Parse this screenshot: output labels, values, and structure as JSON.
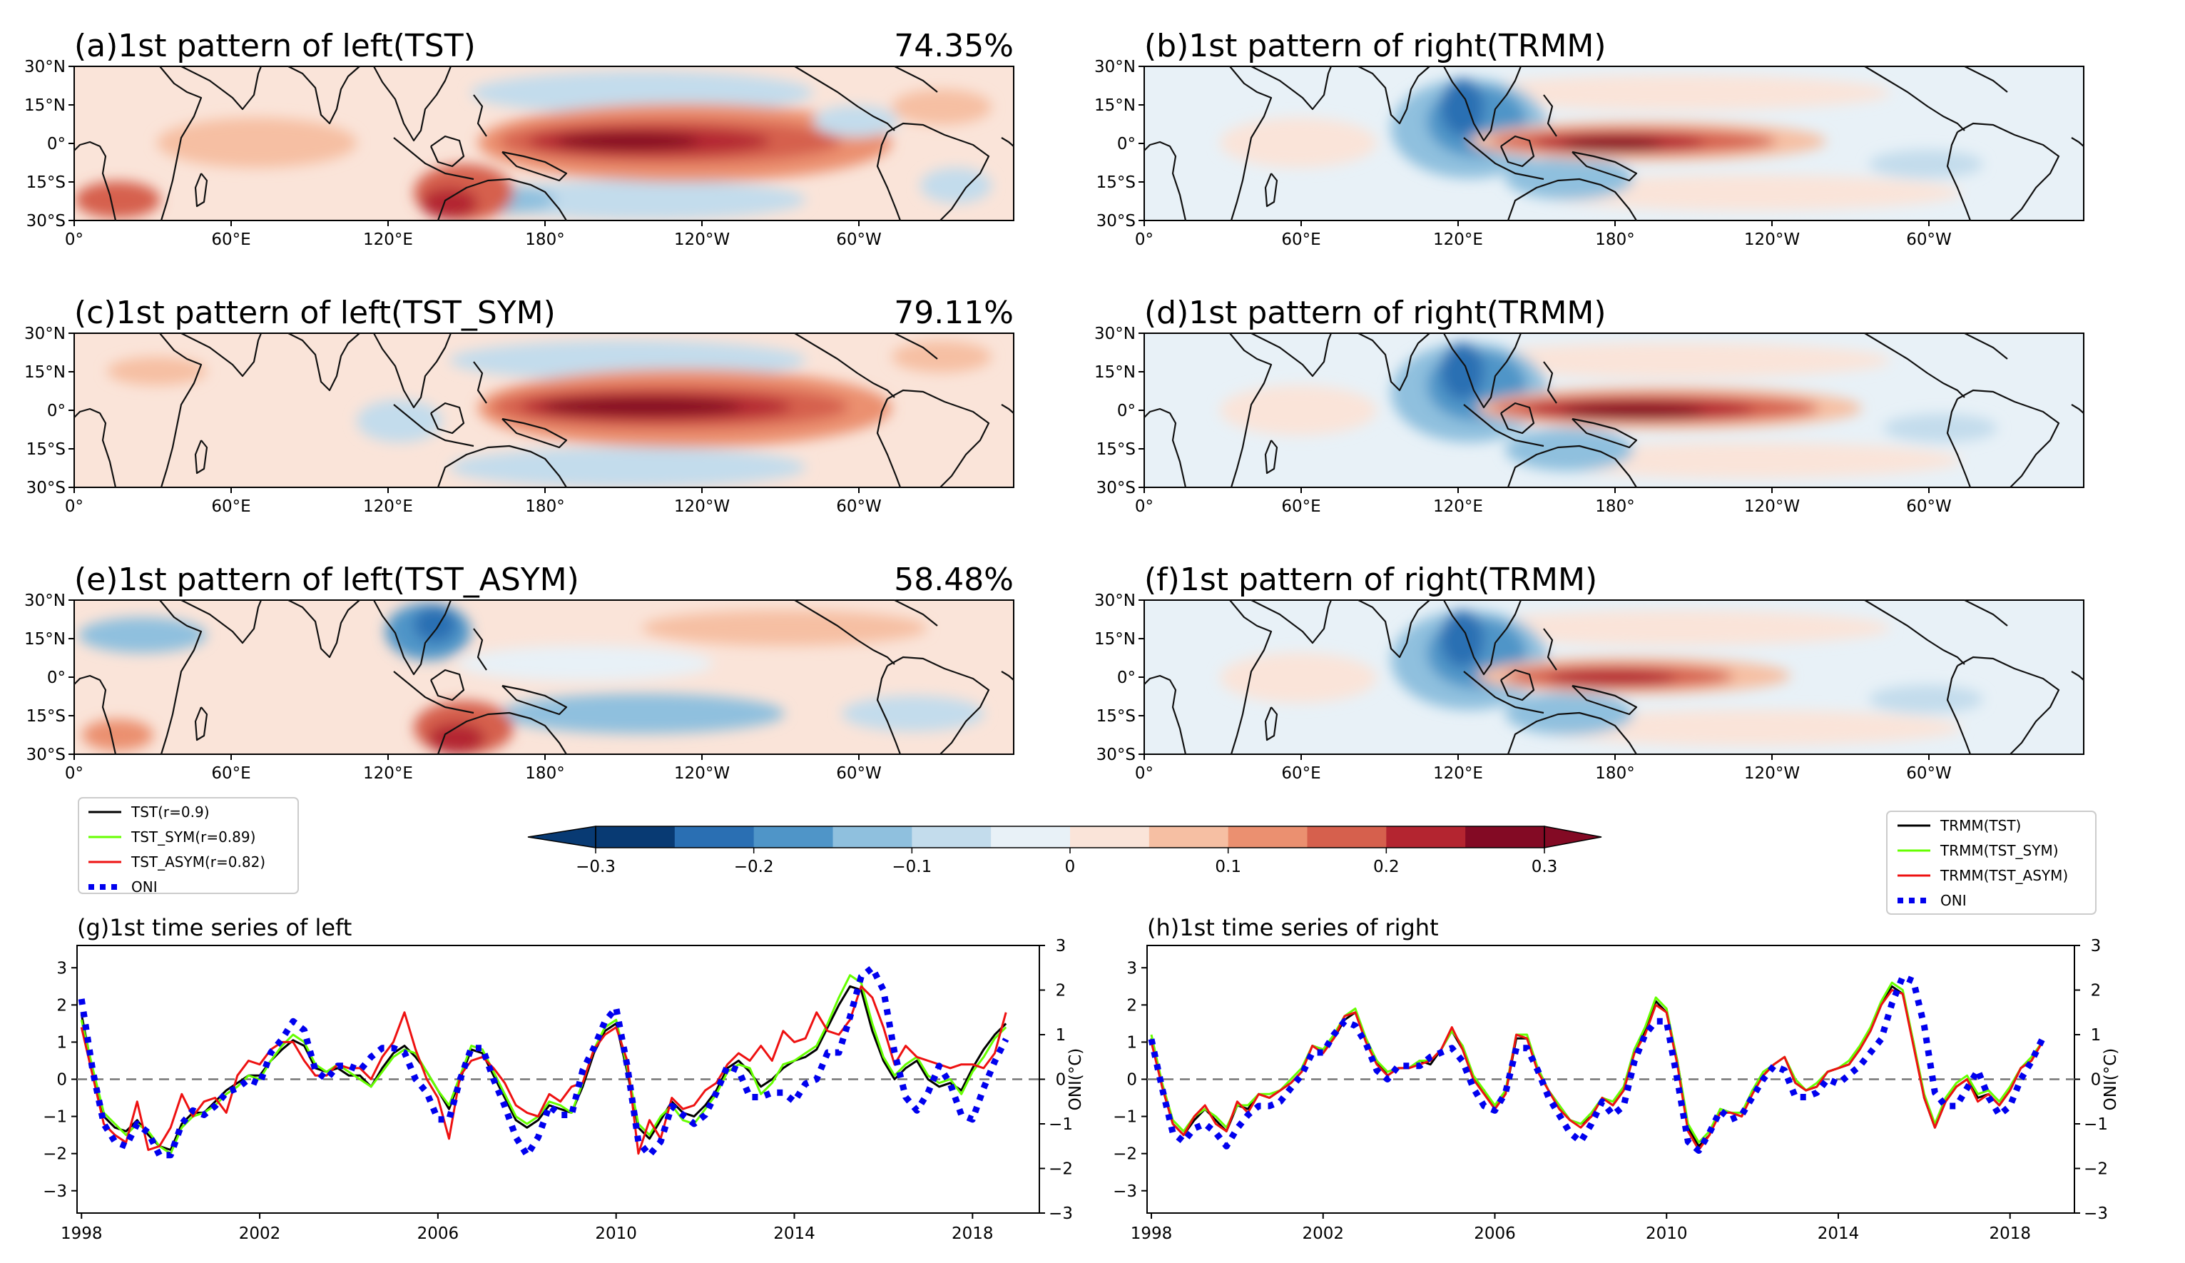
{
  "colors": {
    "scale": [
      "#083a73",
      "#2a6fb3",
      "#4f95c8",
      "#8fc0de",
      "#c3dcec",
      "#e8f1f7",
      "#fae4d9",
      "#f6bfa3",
      "#eb9070",
      "#d6604d",
      "#b42530",
      "#830a24"
    ],
    "black": "#000000",
    "green": "#66ff00",
    "red": "#ee1111",
    "blue": "#0000ee",
    "land": "#111111"
  },
  "maps": {
    "lon_ticks": [
      "0°",
      "60°E",
      "120°E",
      "180°",
      "120°W",
      "60°W"
    ],
    "lat_ticks": [
      "30°N",
      "15°N",
      "0°",
      "15°S",
      "30°S"
    ],
    "panels": [
      {
        "id": "a",
        "title": "(a)1st pattern of left(TST)",
        "pct": "74.35%"
      },
      {
        "id": "b",
        "title": "(b)1st pattern of right(TRMM)",
        "pct": ""
      },
      {
        "id": "c",
        "title": "(c)1st pattern of left(TST_SYM)",
        "pct": "79.11%"
      },
      {
        "id": "d",
        "title": "(d)1st pattern of right(TRMM)",
        "pct": ""
      },
      {
        "id": "e",
        "title": "(e)1st pattern of left(TST_ASYM)",
        "pct": "58.48%"
      },
      {
        "id": "f",
        "title": "(f)1st pattern of right(TRMM)",
        "pct": ""
      }
    ]
  },
  "colorbar": {
    "min": -0.3,
    "max": 0.3,
    "step": 0.05,
    "tick_labels": [
      "−0.3",
      "−0.2",
      "−0.1",
      "0",
      "0.1",
      "0.2",
      "0.3"
    ],
    "tick_values": [
      -0.3,
      -0.2,
      -0.1,
      0,
      0.1,
      0.2,
      0.3
    ]
  },
  "legends": {
    "left": [
      "TST(r=0.9)",
      "TST_SYM(r=0.89)",
      "TST_ASYM(r=0.82)",
      "ONI"
    ],
    "right": [
      "TRMM(TST)",
      "TRMM(TST_SYM)",
      "TRMM(TST_ASYM)",
      "ONI"
    ]
  },
  "chart_data": [
    {
      "type": "line",
      "title": "(g)1st time series of left",
      "xlabel": "",
      "ylabel": "",
      "ylabel_right": "ONI(°C)",
      "xlim": [
        1997.9,
        2019.5
      ],
      "ylim": [
        -3.6,
        3.6
      ],
      "ylim_right": [
        -3,
        3
      ],
      "x_tick_labels": [
        "1998",
        "2002",
        "2006",
        "2010",
        "2014",
        "2018"
      ],
      "x_ticks": [
        1998,
        2002,
        2006,
        2010,
        2014,
        2018
      ],
      "y_tick_labels": [
        "−3",
        "−2",
        "−1",
        "0",
        "1",
        "2",
        "3"
      ],
      "y_ticks": [
        -3,
        -2,
        -1,
        0,
        1,
        2,
        3
      ],
      "y_right_tick_labels": [
        "−3",
        "−2",
        "−1",
        "0",
        "1",
        "2",
        "3"
      ],
      "y_right_ticks": [
        -3,
        -2,
        -1,
        0,
        1,
        2,
        3
      ],
      "x": [
        1998.0,
        1998.25,
        1998.5,
        1998.75,
        1999.0,
        1999.25,
        1999.5,
        1999.75,
        2000.0,
        2000.25,
        2000.5,
        2000.75,
        2001.0,
        2001.25,
        2001.5,
        2001.75,
        2002.0,
        2002.25,
        2002.5,
        2002.75,
        2003.0,
        2003.25,
        2003.5,
        2003.75,
        2004.0,
        2004.25,
        2004.5,
        2004.75,
        2005.0,
        2005.25,
        2005.5,
        2005.75,
        2006.0,
        2006.25,
        2006.5,
        2006.75,
        2007.0,
        2007.25,
        2007.5,
        2007.75,
        2008.0,
        2008.25,
        2008.5,
        2008.75,
        2009.0,
        2009.25,
        2009.5,
        2009.75,
        2010.0,
        2010.25,
        2010.5,
        2010.75,
        2011.0,
        2011.25,
        2011.5,
        2011.75,
        2012.0,
        2012.25,
        2012.5,
        2012.75,
        2013.0,
        2013.25,
        2013.5,
        2013.75,
        2014.0,
        2014.25,
        2014.5,
        2014.75,
        2015.0,
        2015.25,
        2015.5,
        2015.75,
        2016.0,
        2016.25,
        2016.5,
        2016.75,
        2017.0,
        2017.25,
        2017.5,
        2017.75,
        2018.0,
        2018.25,
        2018.5,
        2018.75
      ],
      "series": [
        {
          "name": "TST(r=0.9)",
          "color": "#000000",
          "values": [
            1.75,
            0.2,
            -1.0,
            -1.3,
            -1.4,
            -1.1,
            -1.5,
            -1.8,
            -1.9,
            -1.2,
            -0.9,
            -0.9,
            -0.6,
            -0.3,
            -0.1,
            0.1,
            0.1,
            0.5,
            0.8,
            1.05,
            0.9,
            0.3,
            0.2,
            0.3,
            0.1,
            0.1,
            -0.2,
            0.3,
            0.7,
            0.9,
            0.6,
            0.2,
            -0.3,
            -0.8,
            0.0,
            0.8,
            0.7,
            0.1,
            -0.5,
            -1.1,
            -1.3,
            -1.1,
            -0.7,
            -0.8,
            -0.9,
            -0.2,
            0.7,
            1.3,
            1.5,
            0.2,
            -1.3,
            -1.6,
            -1.1,
            -0.6,
            -0.9,
            -1.0,
            -0.7,
            -0.3,
            0.3,
            0.5,
            0.2,
            -0.2,
            0.0,
            0.3,
            0.5,
            0.6,
            0.8,
            1.4,
            2.0,
            2.5,
            2.4,
            1.3,
            0.5,
            0.0,
            0.3,
            0.5,
            0.0,
            -0.2,
            -0.1,
            -0.3,
            0.3,
            0.8,
            1.2,
            1.5
          ]
        },
        {
          "name": "TST_SYM(r=0.89)",
          "color": "#66ff00",
          "values": [
            1.6,
            0.3,
            -0.9,
            -1.2,
            -1.5,
            -1.2,
            -1.4,
            -1.8,
            -2.0,
            -1.3,
            -1.0,
            -0.9,
            -0.7,
            -0.4,
            -0.2,
            0.1,
            0.0,
            0.5,
            0.9,
            1.2,
            1.0,
            0.4,
            0.2,
            0.4,
            0.2,
            0.0,
            -0.2,
            0.2,
            0.6,
            0.8,
            0.7,
            0.2,
            -0.3,
            -0.7,
            0.1,
            0.9,
            0.8,
            0.2,
            -0.4,
            -1.0,
            -1.2,
            -1.0,
            -0.6,
            -0.7,
            -0.9,
            -0.1,
            0.8,
            1.4,
            1.6,
            0.3,
            -1.2,
            -1.5,
            -1.0,
            -0.7,
            -1.1,
            -1.2,
            -0.8,
            -0.4,
            0.2,
            0.4,
            0.3,
            -0.4,
            -0.1,
            0.4,
            0.5,
            0.7,
            0.9,
            1.5,
            2.2,
            2.8,
            2.6,
            1.5,
            0.6,
            0.1,
            0.4,
            0.6,
            0.1,
            -0.1,
            0.0,
            -0.4,
            0.2,
            0.6,
            1.1,
            1.4
          ]
        },
        {
          "name": "TST_ASYM(r=0.82)",
          "color": "#ee1111",
          "values": [
            1.4,
            0.1,
            -1.2,
            -1.5,
            -1.7,
            -0.6,
            -1.9,
            -1.8,
            -1.3,
            -0.4,
            -1.0,
            -0.6,
            -0.5,
            -0.9,
            0.1,
            0.5,
            0.4,
            0.8,
            1.0,
            1.0,
            0.5,
            0.1,
            0.1,
            0.4,
            0.3,
            0.3,
            0.0,
            0.6,
            1.0,
            1.8,
            0.8,
            0.0,
            -0.5,
            -1.6,
            0.1,
            0.5,
            0.6,
            0.3,
            -0.1,
            -0.7,
            -0.9,
            -1.0,
            -0.4,
            -0.6,
            -0.2,
            -0.1,
            0.8,
            1.2,
            1.4,
            0.5,
            -2.0,
            -1.1,
            -1.6,
            -0.5,
            -0.8,
            -0.7,
            -0.3,
            -0.1,
            0.4,
            0.7,
            0.5,
            0.9,
            0.5,
            1.3,
            1.0,
            1.1,
            1.8,
            1.3,
            1.2,
            1.6,
            2.5,
            2.2,
            1.4,
            0.4,
            0.9,
            0.6,
            0.5,
            0.4,
            0.3,
            0.4,
            0.4,
            0.3,
            0.7,
            1.8
          ]
        },
        {
          "name": "ONI",
          "color": "#0000ee",
          "axis": "right",
          "dashed": true,
          "values": [
            1.8,
            0.2,
            -1.0,
            -1.4,
            -1.5,
            -1.0,
            -1.2,
            -1.7,
            -1.7,
            -1.0,
            -0.7,
            -0.8,
            -0.6,
            -0.3,
            -0.2,
            0.0,
            -0.1,
            0.6,
            0.9,
            1.3,
            1.1,
            0.2,
            0.0,
            0.3,
            0.3,
            0.2,
            0.5,
            0.7,
            0.7,
            0.6,
            0.0,
            -0.3,
            -0.9,
            -0.9,
            0.0,
            0.7,
            0.7,
            0.0,
            -0.6,
            -1.3,
            -1.7,
            -1.3,
            -0.6,
            -0.8,
            -0.8,
            0.2,
            0.7,
            1.3,
            1.6,
            0.3,
            -1.4,
            -1.7,
            -1.4,
            -0.6,
            -0.8,
            -1.0,
            -0.8,
            -0.3,
            0.3,
            0.2,
            -0.4,
            -0.4,
            -0.3,
            -0.3,
            -0.5,
            -0.1,
            0.0,
            0.6,
            0.6,
            1.4,
            2.3,
            2.5,
            2.0,
            0.6,
            -0.4,
            -0.7,
            -0.3,
            0.3,
            -0.1,
            -0.8,
            -0.9,
            -0.2,
            0.4,
            0.9
          ]
        }
      ]
    },
    {
      "type": "line",
      "title": "(h)1st time series of right",
      "xlabel": "",
      "ylabel": "",
      "ylabel_right": "ONI(°C)",
      "xlim": [
        1997.9,
        2019.5
      ],
      "ylim": [
        -3.6,
        3.6
      ],
      "ylim_right": [
        -3,
        3
      ],
      "x_tick_labels": [
        "1998",
        "2002",
        "2006",
        "2010",
        "2014",
        "2018"
      ],
      "x_ticks": [
        1998,
        2002,
        2006,
        2010,
        2014,
        2018
      ],
      "y_tick_labels": [
        "−3",
        "−2",
        "−1",
        "0",
        "1",
        "2",
        "3"
      ],
      "y_ticks": [
        -3,
        -2,
        -1,
        0,
        1,
        2,
        3
      ],
      "y_right_tick_labels": [
        "−3",
        "−2",
        "−1",
        "0",
        "1",
        "2",
        "3"
      ],
      "y_right_ticks": [
        -3,
        -2,
        -1,
        0,
        1,
        2,
        3
      ],
      "x": [
        1998.0,
        1998.25,
        1998.5,
        1998.75,
        1999.0,
        1999.25,
        1999.5,
        1999.75,
        2000.0,
        2000.25,
        2000.5,
        2000.75,
        2001.0,
        2001.25,
        2001.5,
        2001.75,
        2002.0,
        2002.25,
        2002.5,
        2002.75,
        2003.0,
        2003.25,
        2003.5,
        2003.75,
        2004.0,
        2004.25,
        2004.5,
        2004.75,
        2005.0,
        2005.25,
        2005.5,
        2005.75,
        2006.0,
        2006.25,
        2006.5,
        2006.75,
        2007.0,
        2007.25,
        2007.5,
        2007.75,
        2008.0,
        2008.25,
        2008.5,
        2008.75,
        2009.0,
        2009.25,
        2009.5,
        2009.75,
        2010.0,
        2010.25,
        2010.5,
        2010.75,
        2011.0,
        2011.25,
        2011.5,
        2011.75,
        2012.0,
        2012.25,
        2012.5,
        2012.75,
        2013.0,
        2013.25,
        2013.5,
        2013.75,
        2014.0,
        2014.25,
        2014.5,
        2014.75,
        2015.0,
        2015.25,
        2015.5,
        2015.75,
        2016.0,
        2016.25,
        2016.5,
        2016.75,
        2017.0,
        2017.25,
        2017.5,
        2017.75,
        2018.0,
        2018.25,
        2018.5,
        2018.75
      ],
      "series": [
        {
          "name": "TRMM(TST)",
          "color": "#000000",
          "values": [
            1.1,
            -0.2,
            -1.2,
            -1.5,
            -1.1,
            -0.8,
            -1.1,
            -1.4,
            -0.7,
            -0.8,
            -0.4,
            -0.5,
            -0.3,
            -0.1,
            0.2,
            0.9,
            0.8,
            1.1,
            1.6,
            1.8,
            1.0,
            0.5,
            0.1,
            0.3,
            0.3,
            0.5,
            0.4,
            0.8,
            1.3,
            0.8,
            0.0,
            -0.3,
            -0.8,
            -0.4,
            1.1,
            1.1,
            0.3,
            -0.3,
            -0.7,
            -1.1,
            -1.2,
            -1.0,
            -0.5,
            -0.7,
            -0.3,
            0.7,
            1.3,
            2.1,
            1.8,
            0.5,
            -1.3,
            -1.8,
            -1.5,
            -0.8,
            -0.9,
            -1.0,
            -0.3,
            0.1,
            0.4,
            0.6,
            -0.1,
            -0.3,
            -0.2,
            0.2,
            0.3,
            0.4,
            0.8,
            1.3,
            2.0,
            2.5,
            2.3,
            1.0,
            -0.5,
            -1.3,
            -0.6,
            -0.2,
            0.0,
            -0.5,
            -0.4,
            -0.7,
            -0.3,
            0.3,
            0.5,
            1.0
          ]
        },
        {
          "name": "TRMM(TST_SYM)",
          "color": "#66ff00",
          "values": [
            1.2,
            -0.1,
            -1.1,
            -1.4,
            -1.0,
            -0.8,
            -1.0,
            -1.3,
            -0.7,
            -0.7,
            -0.4,
            -0.4,
            -0.3,
            0.0,
            0.3,
            0.9,
            0.8,
            1.2,
            1.7,
            1.9,
            1.1,
            0.5,
            0.2,
            0.3,
            0.3,
            0.5,
            0.5,
            0.8,
            1.3,
            0.9,
            0.1,
            -0.3,
            -0.7,
            -0.3,
            1.2,
            1.2,
            0.3,
            -0.3,
            -0.7,
            -1.1,
            -1.2,
            -0.9,
            -0.5,
            -0.6,
            -0.2,
            0.8,
            1.4,
            2.2,
            1.9,
            0.5,
            -1.2,
            -1.7,
            -1.4,
            -0.8,
            -0.9,
            -0.9,
            -0.3,
            0.2,
            0.4,
            0.6,
            0.0,
            -0.3,
            -0.1,
            0.2,
            0.3,
            0.5,
            0.9,
            1.4,
            2.1,
            2.6,
            2.4,
            1.0,
            -0.4,
            -1.2,
            -0.5,
            -0.1,
            0.1,
            -0.4,
            -0.3,
            -0.6,
            -0.2,
            0.3,
            0.6,
            1.0
          ]
        },
        {
          "name": "TRMM(TST_ASYM)",
          "color": "#ee1111",
          "values": [
            1.0,
            -0.2,
            -1.2,
            -1.5,
            -1.0,
            -0.7,
            -1.2,
            -1.4,
            -0.6,
            -0.9,
            -0.4,
            -0.5,
            -0.3,
            -0.1,
            0.2,
            0.9,
            0.7,
            1.1,
            1.7,
            1.8,
            1.0,
            0.4,
            0.1,
            0.3,
            0.3,
            0.4,
            0.5,
            0.8,
            1.4,
            0.8,
            0.0,
            -0.4,
            -0.8,
            -0.4,
            1.2,
            1.1,
            0.2,
            -0.3,
            -0.8,
            -1.1,
            -1.3,
            -1.0,
            -0.5,
            -0.7,
            -0.3,
            0.7,
            1.2,
            2.0,
            1.8,
            0.4,
            -1.4,
            -1.9,
            -1.5,
            -0.9,
            -0.9,
            -1.0,
            -0.4,
            0.1,
            0.4,
            0.6,
            -0.1,
            -0.3,
            -0.2,
            0.2,
            0.3,
            0.4,
            0.8,
            1.3,
            2.0,
            2.4,
            2.3,
            0.9,
            -0.5,
            -1.3,
            -0.6,
            -0.2,
            0.0,
            -0.6,
            -0.4,
            -0.7,
            -0.3,
            0.3,
            0.5,
            1.0
          ]
        },
        {
          "name": "ONI",
          "color": "#0000ee",
          "axis": "right",
          "dashed": true,
          "values": [
            0.9,
            -0.2,
            -1.2,
            -1.4,
            -1.1,
            -1.0,
            -1.2,
            -1.5,
            -1.1,
            -0.8,
            -0.6,
            -0.6,
            -0.5,
            -0.2,
            0.1,
            0.6,
            0.6,
            1.0,
            1.3,
            1.2,
            0.8,
            0.2,
            0.0,
            0.3,
            0.3,
            0.3,
            0.5,
            0.6,
            0.7,
            0.4,
            -0.2,
            -0.6,
            -0.7,
            -0.3,
            0.7,
            0.7,
            0.2,
            -0.4,
            -0.8,
            -1.2,
            -1.4,
            -1.0,
            -0.5,
            -0.8,
            -0.6,
            0.4,
            1.0,
            1.3,
            1.3,
            0.0,
            -1.4,
            -1.6,
            -1.2,
            -0.7,
            -0.9,
            -0.8,
            -0.4,
            0.0,
            0.3,
            0.2,
            -0.4,
            -0.4,
            -0.3,
            0.0,
            -0.1,
            0.1,
            0.3,
            0.6,
            0.9,
            1.7,
            2.3,
            2.2,
            1.2,
            -0.3,
            -0.6,
            -0.6,
            -0.2,
            0.2,
            -0.4,
            -0.8,
            -0.6,
            0.0,
            0.4,
            0.9
          ]
        }
      ]
    }
  ]
}
